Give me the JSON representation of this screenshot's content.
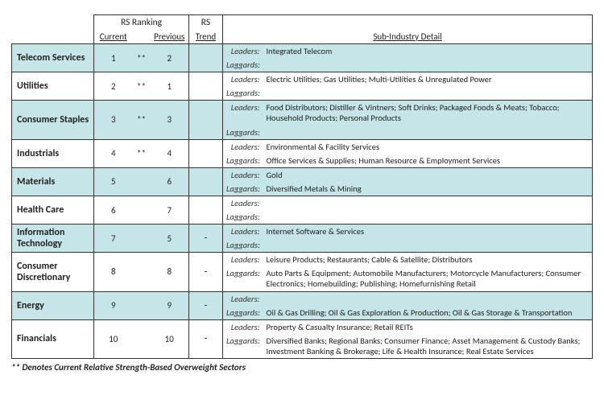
{
  "colors": {
    "shade": "#c5e5e8",
    "border": "#333333",
    "text": "#222222"
  },
  "header": {
    "rs_ranking": "RS Ranking",
    "current": "Current",
    "previous": "Previous",
    "rs": "RS",
    "trend": "Trend",
    "sub_detail": "Sub-Industry Detail"
  },
  "labels": {
    "leaders": "Leaders:",
    "laggards": "Laggards:"
  },
  "footnote": "** Denotes Current Relative Strength-Based Overweight Sectors",
  "rows": [
    {
      "sector": "Telecom Services",
      "current": "1",
      "star": "**",
      "previous": "2",
      "trend": "",
      "leaders": "Integrated Telecom",
      "laggards": "",
      "shade": true
    },
    {
      "sector": "Utilities",
      "current": "2",
      "star": "**",
      "previous": "1",
      "trend": "",
      "leaders": "Electric Utilities; Gas Utilities; Multi-Utilities & Unregulated Power",
      "laggards": "",
      "shade": false
    },
    {
      "sector": "Consumer Staples",
      "current": "3",
      "star": "**",
      "previous": "3",
      "trend": "",
      "leaders": "Food Distributors; Distiller & Vintners; Soft Drinks; Packaged Foods & Meats; Tobacco; Household Products; Personal Products",
      "laggards": "",
      "shade": true
    },
    {
      "sector": "Industrials",
      "current": "4",
      "star": "**",
      "previous": "4",
      "trend": "",
      "leaders": "Environmental & Facility Services",
      "laggards": "Office Services & Supplies; Human Resource & Employment Services",
      "shade": false
    },
    {
      "sector": "Materials",
      "current": "5",
      "star": "",
      "previous": "6",
      "trend": "",
      "leaders": "Gold",
      "laggards": "Diversified Metals & Mining",
      "shade": true
    },
    {
      "sector": "Health Care",
      "current": "6",
      "star": "",
      "previous": "7",
      "trend": "",
      "leaders": "",
      "laggards": "",
      "shade": false
    },
    {
      "sector": "Information Technology",
      "current": "7",
      "star": "",
      "previous": "5",
      "trend": "-",
      "leaders": "Internet Software & Services",
      "laggards": "",
      "shade": true
    },
    {
      "sector": "Consumer Discretionary",
      "current": "8",
      "star": "",
      "previous": "8",
      "trend": "-",
      "leaders": "Leisure Products; Restaurants; Cable & Satellite; Distributors",
      "laggards": "Auto Parts & Equipment; Automobile Manufacturers; Motorcycle Manufacturers; Consumer Electronics; Homebuilding; Publishing; Homefurnishing Retail",
      "shade": false
    },
    {
      "sector": "Energy",
      "current": "9",
      "star": "",
      "previous": "9",
      "trend": "-",
      "leaders": "",
      "laggards": "Oil & Gas Drilling; Oil & Gas Exploration & Production; Oil & Gas Storage & Transportation",
      "shade": true
    },
    {
      "sector": "Financials",
      "current": "10",
      "star": "",
      "previous": "10",
      "trend": "-",
      "leaders": "Property & Casualty Insurance; Retail REITs",
      "laggards": "Diversified Banks; Regional Banks; Consumer Finance; Asset Management & Custody Banks; Investment Banking & Brokerage; Life & Health Insurance; Real Estate Services",
      "shade": false
    }
  ]
}
